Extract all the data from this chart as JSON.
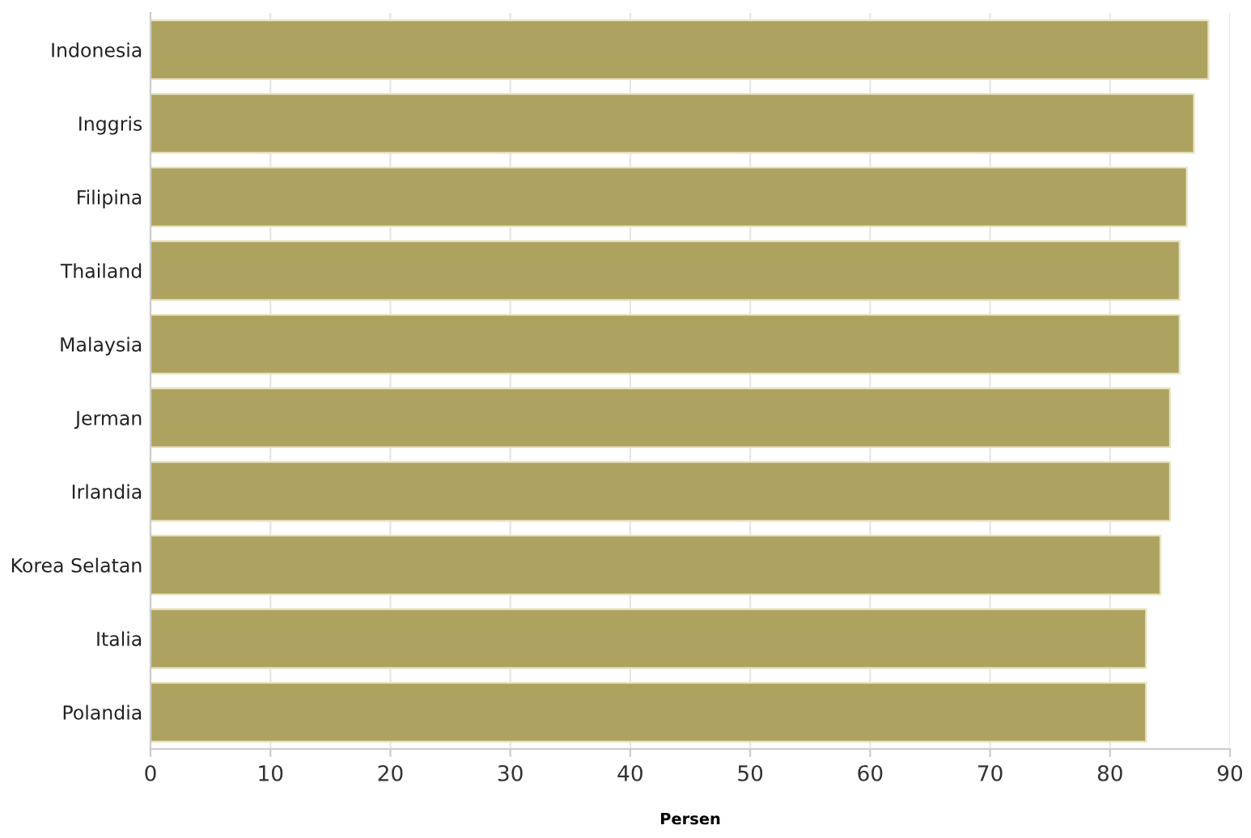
{
  "chart_data": {
    "type": "bar",
    "orientation": "horizontal",
    "xlabel": "Persen",
    "categories": [
      "Indonesia",
      "Inggris",
      "Filipina",
      "Thailand",
      "Malaysia",
      "Jerman",
      "Irlandia",
      "Korea Selatan",
      "Italia",
      "Polandia"
    ],
    "values": [
      88.2,
      87.0,
      86.4,
      85.8,
      85.8,
      85.0,
      85.0,
      84.2,
      83.0,
      83.0
    ],
    "color": "#ada25f",
    "xlim": [
      0,
      90
    ],
    "xticks": [
      0,
      10,
      20,
      30,
      40,
      50,
      60,
      70,
      80,
      90
    ],
    "grid": "x"
  }
}
